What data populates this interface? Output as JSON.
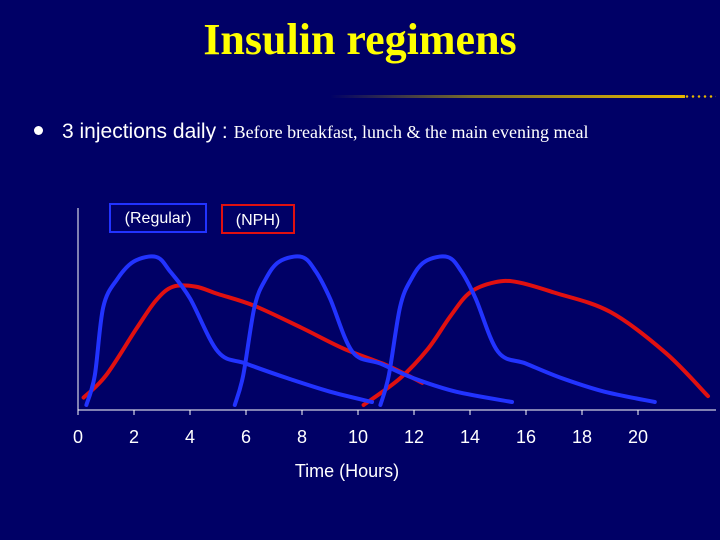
{
  "slide": {
    "title": "Insulin regimens",
    "bullet_main": "3 injections daily : ",
    "bullet_sub": "Before breakfast, lunch & the main evening meal"
  },
  "colors": {
    "background": "#000066",
    "title": "#ffff00",
    "regular": "#2233ff",
    "nph": "#e01010",
    "text": "#ffffff"
  },
  "chart_data": {
    "type": "line",
    "xlabel": "Time (Hours)",
    "ylabel": "",
    "xlim": [
      0,
      22.5
    ],
    "ylim": [
      0,
      1
    ],
    "xticks": [
      0,
      2,
      4,
      6,
      8,
      10,
      12,
      14,
      16,
      18,
      20
    ],
    "grid": false,
    "legend": {
      "placement": "top-left",
      "boxed": true
    },
    "series": [
      {
        "name": "(Regular)",
        "color": "#2233ff",
        "curves": [
          {
            "x": [
              0.3,
              0.6,
              0.9,
              1.4,
              2.0,
              2.8,
              3.3,
              4.0,
              5.0,
              6.0,
              7.5,
              9.0,
              10.5
            ],
            "y": [
              0.0,
              0.2,
              0.66,
              0.85,
              0.97,
              1.0,
              0.9,
              0.72,
              0.36,
              0.28,
              0.18,
              0.09,
              0.02
            ]
          },
          {
            "x": [
              5.6,
              5.9,
              6.3,
              6.7,
              7.2,
              8.0,
              8.5,
              9.0,
              9.8,
              10.8,
              12.0,
              13.5,
              15.5
            ],
            "y": [
              0.0,
              0.2,
              0.66,
              0.85,
              0.97,
              1.0,
              0.9,
              0.72,
              0.36,
              0.28,
              0.18,
              0.09,
              0.02
            ]
          },
          {
            "x": [
              10.8,
              11.1,
              11.5,
              11.9,
              12.4,
              13.2,
              13.7,
              14.2,
              15.0,
              16.0,
              17.3,
              18.8,
              20.6
            ],
            "y": [
              0.0,
              0.2,
              0.66,
              0.85,
              0.97,
              1.0,
              0.9,
              0.72,
              0.36,
              0.28,
              0.18,
              0.09,
              0.02
            ]
          }
        ]
      },
      {
        "name": "(NPH)",
        "color": "#e01010",
        "curves": [
          {
            "x": [
              0.2,
              1.0,
              2.1,
              2.8,
              3.4,
              4.2,
              5.0,
              6.3,
              8.0,
              9.5,
              11.0,
              12.3
            ],
            "y": [
              0.05,
              0.2,
              0.52,
              0.71,
              0.8,
              0.8,
              0.75,
              0.67,
              0.52,
              0.38,
              0.27,
              0.15
            ]
          },
          {
            "x": [
              10.2,
              11.5,
              12.5,
              13.3,
              14.0,
              14.9,
              15.7,
              17.0,
              19.0,
              21.0,
              22.5
            ],
            "y": [
              0.0,
              0.18,
              0.38,
              0.6,
              0.76,
              0.83,
              0.83,
              0.76,
              0.63,
              0.35,
              0.06
            ]
          }
        ]
      }
    ]
  }
}
